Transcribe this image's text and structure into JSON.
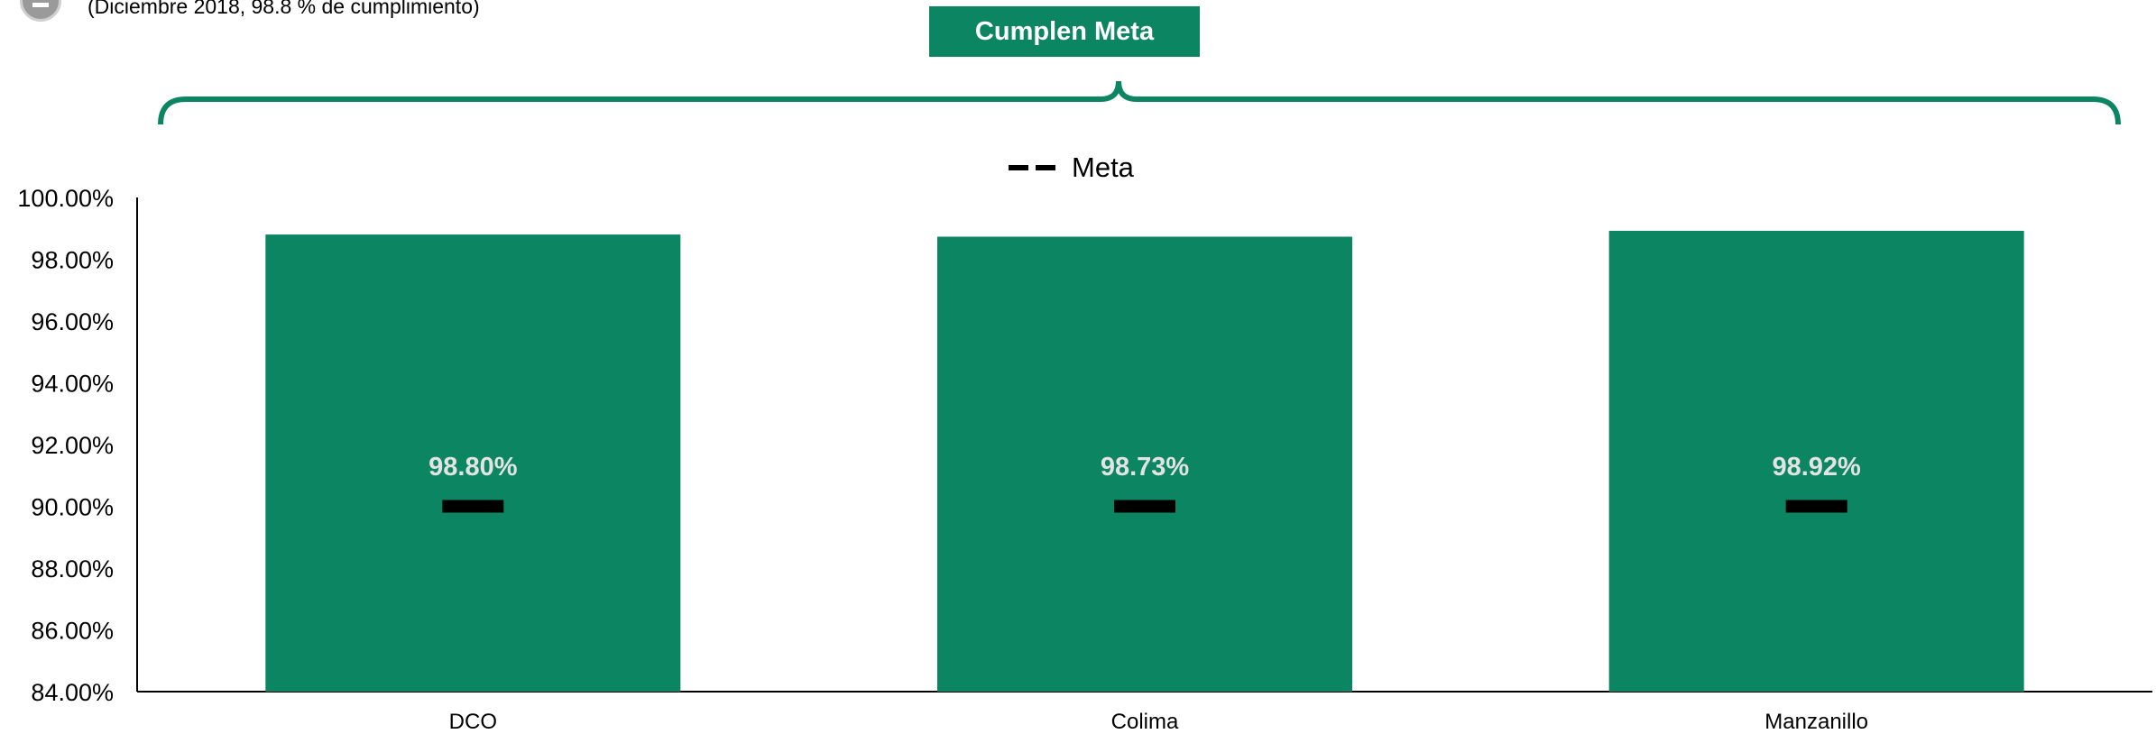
{
  "header": {
    "subtitle": "(Diciembre  2018,  98.8 % de cumplimiento)",
    "goal_box_label": "Cumplen Meta"
  },
  "legend": {
    "label": "Meta"
  },
  "colors": {
    "bar": "#0c8562",
    "meta": "#000000",
    "brace": "#0c8562"
  },
  "chart_data": {
    "type": "bar",
    "title": "",
    "xlabel": "",
    "ylabel": "",
    "categories": [
      "DCO",
      "Colima",
      "Manzanillo"
    ],
    "series": [
      {
        "values": [
          98.8,
          98.73,
          98.92
        ]
      },
      {
        "name": "Meta",
        "values": [
          90.0,
          90.0,
          90.0
        ]
      }
    ],
    "data_labels": [
      "98.80%",
      "98.73%",
      "98.92%"
    ],
    "y_ticks": [
      "84.00%",
      "86.00%",
      "88.00%",
      "90.00%",
      "92.00%",
      "94.00%",
      "96.00%",
      "98.00%",
      "100.00%"
    ],
    "ylim": [
      84,
      100
    ],
    "grid": false,
    "legend_position": "top-center"
  }
}
